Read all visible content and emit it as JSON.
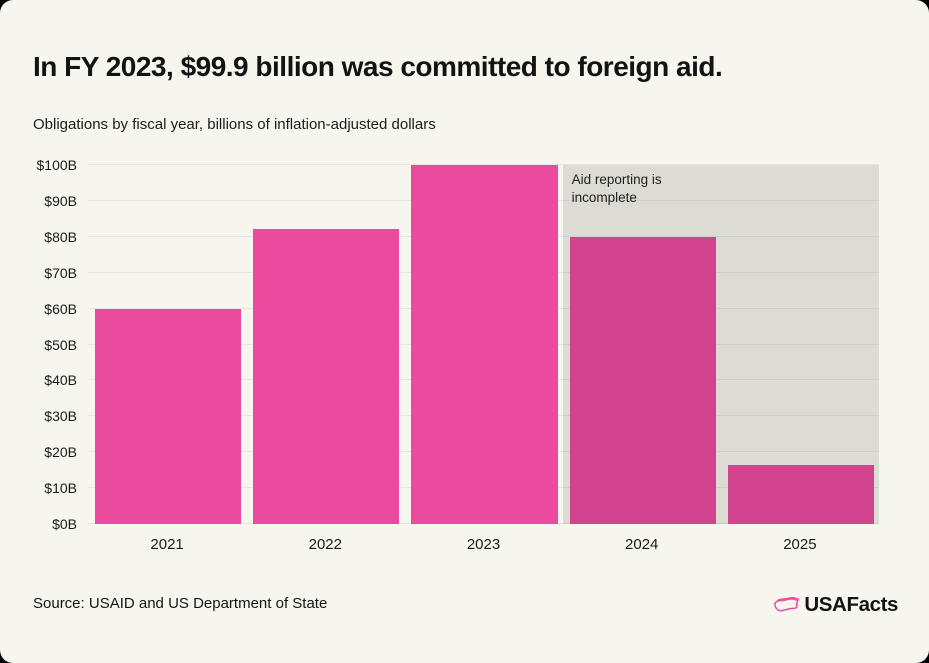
{
  "page": {
    "title": "In FY 2023, $99.9 billion was committed to foreign aid.",
    "subtitle": "Obligations by fiscal year, billions of inflation-adjusted dollars",
    "source": "Source: USAID and US Department of State",
    "brand_name": "USAFacts"
  },
  "colors": {
    "card_background": "#f6f6ef",
    "bar_pink": "#ea4b9e",
    "bar_pink_in_incomplete_region": "#cd4590",
    "incomplete_overlay": "rgba(0,0,0,0.105)",
    "gridline": "#e8e8e1",
    "brand_pink": "#ec4b9e",
    "text_dark": "#151515"
  },
  "chart_data": {
    "type": "bar",
    "title": "In FY 2023, $99.9 billion was committed to foreign aid.",
    "subtitle": "Obligations by fiscal year, billions of inflation-adjusted dollars",
    "categories": [
      "2021",
      "2022",
      "2023",
      "2024",
      "2025"
    ],
    "values": [
      60,
      82.2,
      99.9,
      80,
      16.4
    ],
    "unit": "billions of inflation-adjusted dollars (obligations by fiscal year)",
    "ylim": [
      0,
      100
    ],
    "yticks": [
      {
        "value": 0,
        "label": "$0B"
      },
      {
        "value": 10,
        "label": "$10B"
      },
      {
        "value": 20,
        "label": "$20B"
      },
      {
        "value": 30,
        "label": "$30B"
      },
      {
        "value": 40,
        "label": "$40B"
      },
      {
        "value": 50,
        "label": "$50B"
      },
      {
        "value": 60,
        "label": "$60B"
      },
      {
        "value": 70,
        "label": "$70B"
      },
      {
        "value": 80,
        "label": "$80B"
      },
      {
        "value": 90,
        "label": "$90B"
      },
      {
        "value": 100,
        "label": "$100B"
      }
    ],
    "grid": "horizontal",
    "legend": "none",
    "annotation": {
      "text": "Aid reporting is incomplete",
      "start_index": 3
    }
  }
}
